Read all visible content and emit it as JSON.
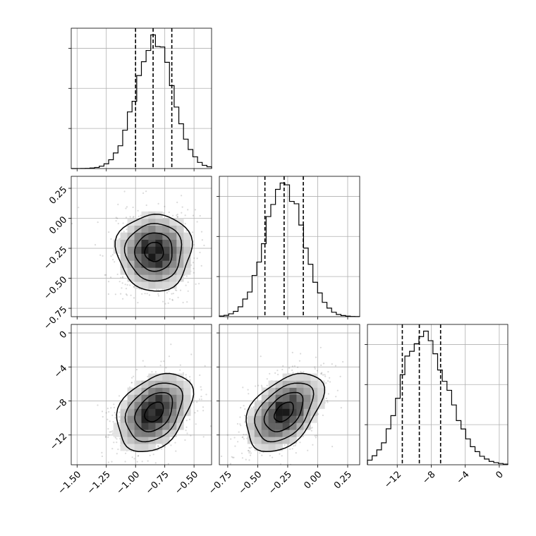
{
  "chart_data": {
    "type": "corner",
    "parameters": [
      {
        "range": [
          -1.55,
          -0.35
        ],
        "ticks": [
          -1.5,
          -1.25,
          -1.0,
          -0.75,
          -0.5
        ],
        "tick_labels": [
          "−1.50",
          "−1.25",
          "−1.00",
          "−0.75",
          "−0.50"
        ],
        "quantiles": [
          -1.0,
          -0.85,
          -0.69
        ],
        "mean": -0.84,
        "std": 0.16
      },
      {
        "range": [
          -0.82,
          0.35
        ],
        "ticks": [
          -0.75,
          -0.5,
          -0.25,
          0.0,
          0.25
        ],
        "tick_labels": [
          "−0.75",
          "−0.50",
          "−0.25",
          "0.00",
          "0.25"
        ],
        "quantiles": [
          -0.44,
          -0.28,
          -0.12
        ],
        "mean": -0.28,
        "std": 0.16
      },
      {
        "range": [
          -15.5,
          1.0
        ],
        "ticks": [
          -12,
          -8,
          -4,
          0
        ],
        "tick_labels": [
          "−12",
          "−8",
          "−4",
          "0"
        ],
        "quantiles": [
          -11.4,
          -9.4,
          -6.9
        ],
        "mean": -9.3,
        "std": 2.3
      }
    ],
    "diag_grid_fractions": [
      0.3,
      0.6,
      0.9
    ],
    "correlations": {
      "1,0": 0.0,
      "2,0": 0.35,
      "2,1": 0.45
    },
    "contour_levels_sigma": [
      0.5,
      1.0,
      1.5,
      2.0
    ],
    "grid": true
  }
}
